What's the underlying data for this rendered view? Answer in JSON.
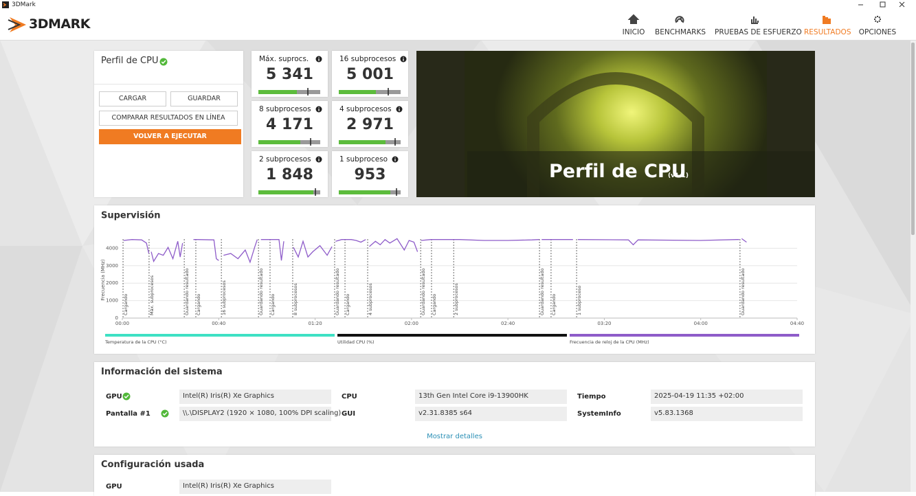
{
  "window": {
    "title": "3DMark"
  },
  "header": {
    "logo": "3DMARK",
    "nav": [
      {
        "label": "INICIO",
        "active": false
      },
      {
        "label": "BENCHMARKS",
        "active": false
      },
      {
        "label": "PRUEBAS DE ESFUERZO",
        "active": false
      },
      {
        "label": "RESULTADOS",
        "active": true
      },
      {
        "label": "OPCIONES",
        "active": false
      }
    ]
  },
  "profile": {
    "title": "Perfil de CPU",
    "verified": true,
    "buttons": {
      "load": "CARGAR",
      "save": "GUARDAR",
      "compare": "COMPARAR RESULTADOS EN LÍNEA",
      "rerun": "VOLVER A EJECUTAR"
    }
  },
  "scores": [
    {
      "label": "Máx. suprocs.",
      "score": "5 341"
    },
    {
      "label": "16 subprocesos",
      "score": "5 001"
    },
    {
      "label": "8 subprocesos",
      "score": "4 171"
    },
    {
      "label": "4 subprocesos",
      "score": "2 971"
    },
    {
      "label": "2 subprocesos",
      "score": "1 848"
    },
    {
      "label": "1 subproceso",
      "score": "953"
    }
  ],
  "hero": {
    "title": "Perfil de CPU",
    "version": "(v1.1)"
  },
  "monitoring": {
    "title": "Supervisión",
    "chart": {
      "type": "line",
      "ylabel": "Frecuencia (MHz)",
      "xlim": [
        0,
        280
      ],
      "ylim": [
        0,
        5000
      ],
      "grid": true,
      "yticks": [
        0,
        1000,
        2000,
        3000,
        4000
      ],
      "xticks": [
        {
          "value": 0,
          "label": "00:00"
        },
        {
          "value": 40,
          "label": "00:40"
        },
        {
          "value": 80,
          "label": "01:20"
        },
        {
          "value": 120,
          "label": "02:00"
        },
        {
          "value": 160,
          "label": "02:40"
        },
        {
          "value": 200,
          "label": "03:20"
        },
        {
          "value": 240,
          "label": "04:00"
        },
        {
          "value": 280,
          "label": "04:40"
        }
      ],
      "markers": [
        {
          "x": 0.3,
          "label": "Cargando"
        },
        {
          "x": 11.1,
          "label": "Máx. subprocesos"
        },
        {
          "x": 25.7,
          "label": "Guardando resultado"
        },
        {
          "x": 30.5,
          "label": "Cargando"
        },
        {
          "x": 41.1,
          "label": "16 subprocesos"
        },
        {
          "x": 56.5,
          "label": "Guardando resultado"
        },
        {
          "x": 61.3,
          "label": "Cargando"
        },
        {
          "x": 70.7,
          "label": "8 subprocesos"
        },
        {
          "x": 88.1,
          "label": "Guardando resultado"
        },
        {
          "x": 92.4,
          "label": "Cargando"
        },
        {
          "x": 101.8,
          "label": "4 subprocesos"
        },
        {
          "x": 123.8,
          "label": "Guardando resultado"
        },
        {
          "x": 128.3,
          "label": "Cargando"
        },
        {
          "x": 137.5,
          "label": "2 subprocesos"
        },
        {
          "x": 173.1,
          "label": "Guardando resultado"
        },
        {
          "x": 177.9,
          "label": "Cargando"
        },
        {
          "x": 188.5,
          "label": "1 subproceso"
        },
        {
          "x": 256.3,
          "label": "Guardando resultado"
        }
      ],
      "legend": [
        {
          "name": "Temperatura de la CPU (°C)",
          "color": "#3ee0c4"
        },
        {
          "name": "Utilidad CPU (%)",
          "color": "#111111"
        }
      ],
      "series": [
        {
          "name": "Frecuencia de reloj de la CPU (MHz)",
          "color": "#8e5cc9",
          "x": [
            0.5,
            4,
            8,
            10,
            11,
            11.5,
            12,
            13,
            15,
            17,
            19,
            21,
            23,
            24,
            25,
            26,
            29.5,
            31,
            38,
            39,
            40,
            41,
            42,
            45,
            48,
            51,
            53,
            55,
            56,
            57,
            57.5,
            61,
            65,
            66,
            67,
            70,
            71,
            73,
            75,
            77,
            79,
            82,
            85,
            87,
            88,
            88.5,
            91,
            95,
            97,
            99,
            101,
            102,
            102.5,
            105,
            107,
            109,
            111,
            114,
            117,
            119,
            121,
            122.5,
            123.5,
            124,
            128,
            140,
            150,
            160,
            170,
            173,
            173.5,
            174,
            187,
            188,
            189,
            210,
            212,
            214,
            240,
            255,
            256,
            256.5,
            257,
            259
          ],
          "values": [
            4450,
            4500,
            4480,
            4300,
            3700,
            null,
            3800,
            3250,
            3700,
            3600,
            4050,
            3400,
            4400,
            3500,
            4300,
            null,
            4500,
            4500,
            4480,
            3400,
            3300,
            null,
            3600,
            3700,
            3400,
            3900,
            3200,
            4100,
            4500,
            null,
            4500,
            4500,
            4500,
            3300,
            4400,
            null,
            4050,
            3500,
            4400,
            3500,
            3800,
            4150,
            3600,
            4100,
            null,
            4400,
            4500,
            4500,
            4450,
            4350,
            4500,
            null,
            4100,
            4400,
            4200,
            4500,
            4300,
            4550,
            3900,
            4450,
            4350,
            3800,
            null,
            4450,
            4500,
            4500,
            4450,
            4450,
            4480,
            4500,
            null,
            4500,
            4500,
            null,
            4500,
            4480,
            4200,
            4480,
            4450,
            4500,
            4500,
            null,
            4550,
            4350
          ]
        }
      ]
    }
  },
  "system_info": {
    "title": "Información del sistema",
    "items": [
      {
        "label": "GPU",
        "value": "Intel(R) Iris(R) Xe Graphics",
        "verified": true
      },
      {
        "label": "Pantalla #1",
        "value": "\\\\.\\DISPLAY2 (1920 × 1080, 100% DPI scaling)",
        "verified": true
      },
      {
        "label": "CPU",
        "value": "13th Gen Intel Core i9-13900HK",
        "verified": false
      },
      {
        "label": "GUI",
        "value": "v2.31.8385 s64",
        "verified": false
      },
      {
        "label": "Tiempo",
        "value": "2025-04-19 11:35 +02:00",
        "verified": false
      },
      {
        "label": "SystemInfo",
        "value": "v5.83.1368",
        "verified": false
      }
    ],
    "link": "Mostrar detalles"
  },
  "config": {
    "title": "Configuración usada",
    "items": [
      {
        "label": "GPU",
        "value": "Intel(R) Iris(R) Xe Graphics"
      }
    ]
  }
}
